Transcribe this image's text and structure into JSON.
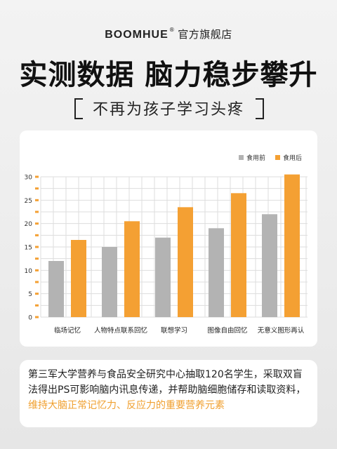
{
  "brand": {
    "name": "BOOMHUE",
    "reg": "®",
    "store": "官方旗舰店"
  },
  "headline": "实测数据 脑力稳步攀升",
  "subtitle": "不再为孩子学习头疼",
  "colors": {
    "before": "#b3b3b3",
    "after": "#f4a033",
    "accent": "#f0a030",
    "grid": "#dddddd"
  },
  "chart_data": {
    "type": "bar",
    "categories": [
      "临场记忆",
      "人物特点联系回忆",
      "联想学习",
      "图像自由回忆",
      "无意义图形再认"
    ],
    "series": [
      {
        "name": "食用前",
        "values": [
          12,
          15,
          17,
          19,
          22
        ]
      },
      {
        "name": "食用后",
        "values": [
          16.5,
          20.5,
          23.5,
          26.5,
          30.5
        ]
      }
    ],
    "yticks": [
      0,
      5,
      10,
      15,
      20,
      25,
      30
    ],
    "ylim": [
      0,
      30
    ],
    "grid": true,
    "legend_position": "top-right"
  },
  "info": {
    "text": "第三军大学营养与食品安全研究中心抽取120名学生，采取双盲法得出PS可影响脑内讯息传递，并帮助脑细胞储存和读取资料，",
    "highlight": "维持大脑正常记忆力、反应力的重要营养元素"
  }
}
